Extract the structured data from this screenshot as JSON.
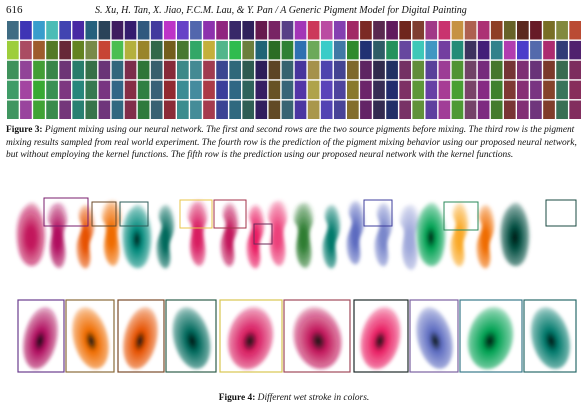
{
  "header": {
    "page_number": "616",
    "running_head": "S. Xu, H. Tan, X. Jiao, F.C.M. Lau, & Y. Pan / A Generic Pigment Model for Digital Painting"
  },
  "figure3": {
    "label": "Figure 3:",
    "caption": "Pigment mixing using our neural network. The first and second rows are the two source pigments before mixing. The third row is the pigment mixing results sampled from real world experiment. The fourth row is the prediction of the pigment mixing behavior using our proposed neural network, but without employing the kernel functions. The fifth row is the prediction using our proposed neural network with the kernel functions.",
    "rows": 5,
    "columns": 44
  },
  "figure4": {
    "label": "Figure 4:",
    "caption": "Different wet stroke in colors.",
    "top_strokes": [
      {
        "color": "#c2185b",
        "shape": "blob"
      },
      {
        "color": "#b0105f",
        "shape": "hook"
      },
      {
        "color": "#e65100",
        "shape": "s"
      },
      {
        "color": "#ef6c00",
        "shape": "hook"
      },
      {
        "color": "#00897b",
        "shape": "blob"
      },
      {
        "color": "#00695c",
        "shape": "s"
      },
      {
        "color": "#d81b60",
        "shape": "hook"
      },
      {
        "color": "#c2185b",
        "shape": "s"
      },
      {
        "color": "#e91e63",
        "shape": "s"
      },
      {
        "color": "#ec407a",
        "shape": "hook"
      },
      {
        "color": "#2e7d32",
        "shape": "hook"
      },
      {
        "color": "#00796b",
        "shape": "s"
      },
      {
        "color": "#5c6bc0",
        "shape": "s"
      },
      {
        "color": "#7986cb",
        "shape": "s"
      },
      {
        "color": "#9fa8da",
        "shape": "hook"
      },
      {
        "color": "#00a152",
        "shape": "blob"
      },
      {
        "color": "#f9a825",
        "shape": "s"
      },
      {
        "color": "#ef6c00",
        "shape": "s"
      },
      {
        "color": "#004d40",
        "shape": "blob"
      }
    ],
    "bottom_strokes": [
      {
        "color": "#b0105f"
      },
      {
        "color": "#ef6c00"
      },
      {
        "color": "#e65100"
      },
      {
        "color": "#00695c"
      },
      {
        "color": "#d81b60"
      },
      {
        "color": "#c2185b"
      },
      {
        "color": "#e91e63"
      },
      {
        "color": "#5c6bc0"
      },
      {
        "color": "#00a152"
      },
      {
        "color": "#00796b"
      }
    ]
  }
}
